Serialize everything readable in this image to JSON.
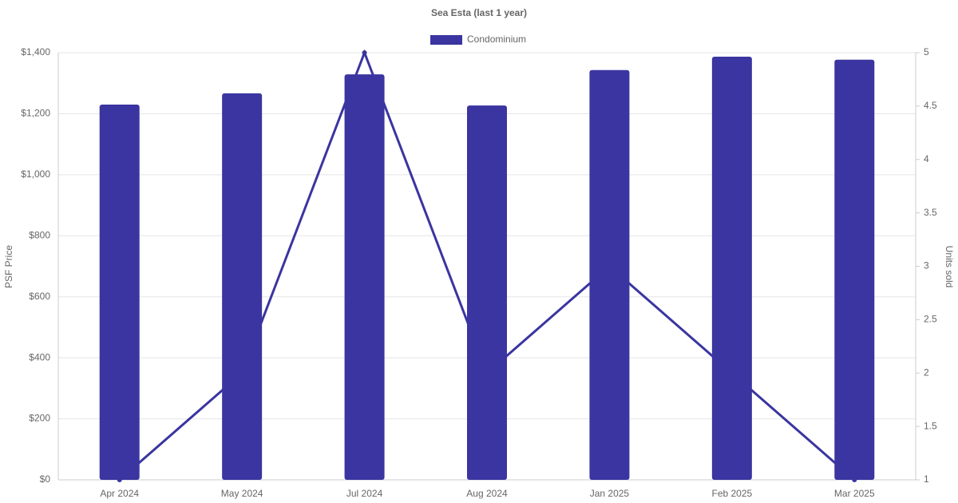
{
  "chart_data": {
    "type": "bar",
    "title": "Sea Esta (last 1 year)",
    "y_label": "PSF Price",
    "y2_label": "Units sold",
    "categories": [
      "Apr 2024",
      "May 2024",
      "Jul 2024",
      "Aug 2024",
      "Jan 2025",
      "Feb 2025",
      "Mar 2025"
    ],
    "series": [
      {
        "name": "Condominium",
        "type": "bar",
        "color": "#3a35a0",
        "values": [
          1230,
          1267,
          1329,
          1227,
          1343,
          1387,
          1377
        ]
      },
      {
        "type": "line",
        "axis": "y2",
        "color": "#3a35a0",
        "values": [
          1,
          2,
          5,
          2,
          3,
          2,
          1
        ]
      }
    ],
    "ylim": [
      0,
      1400
    ],
    "yticks": [
      {
        "value": 0,
        "label": "$0"
      },
      {
        "value": 200,
        "label": "$200"
      },
      {
        "value": 400,
        "label": "$400"
      },
      {
        "value": 600,
        "label": "$600"
      },
      {
        "value": 800,
        "label": "$800"
      },
      {
        "value": 1000,
        "label": "$1,000"
      },
      {
        "value": 1200,
        "label": "$1,200"
      },
      {
        "value": 1400,
        "label": "$1,400"
      }
    ],
    "y2lim": [
      1,
      5
    ],
    "y2ticks": [
      1,
      1.5,
      2,
      2.5,
      3,
      3.5,
      4,
      4.5,
      5
    ],
    "grid": true,
    "legend": "top"
  }
}
